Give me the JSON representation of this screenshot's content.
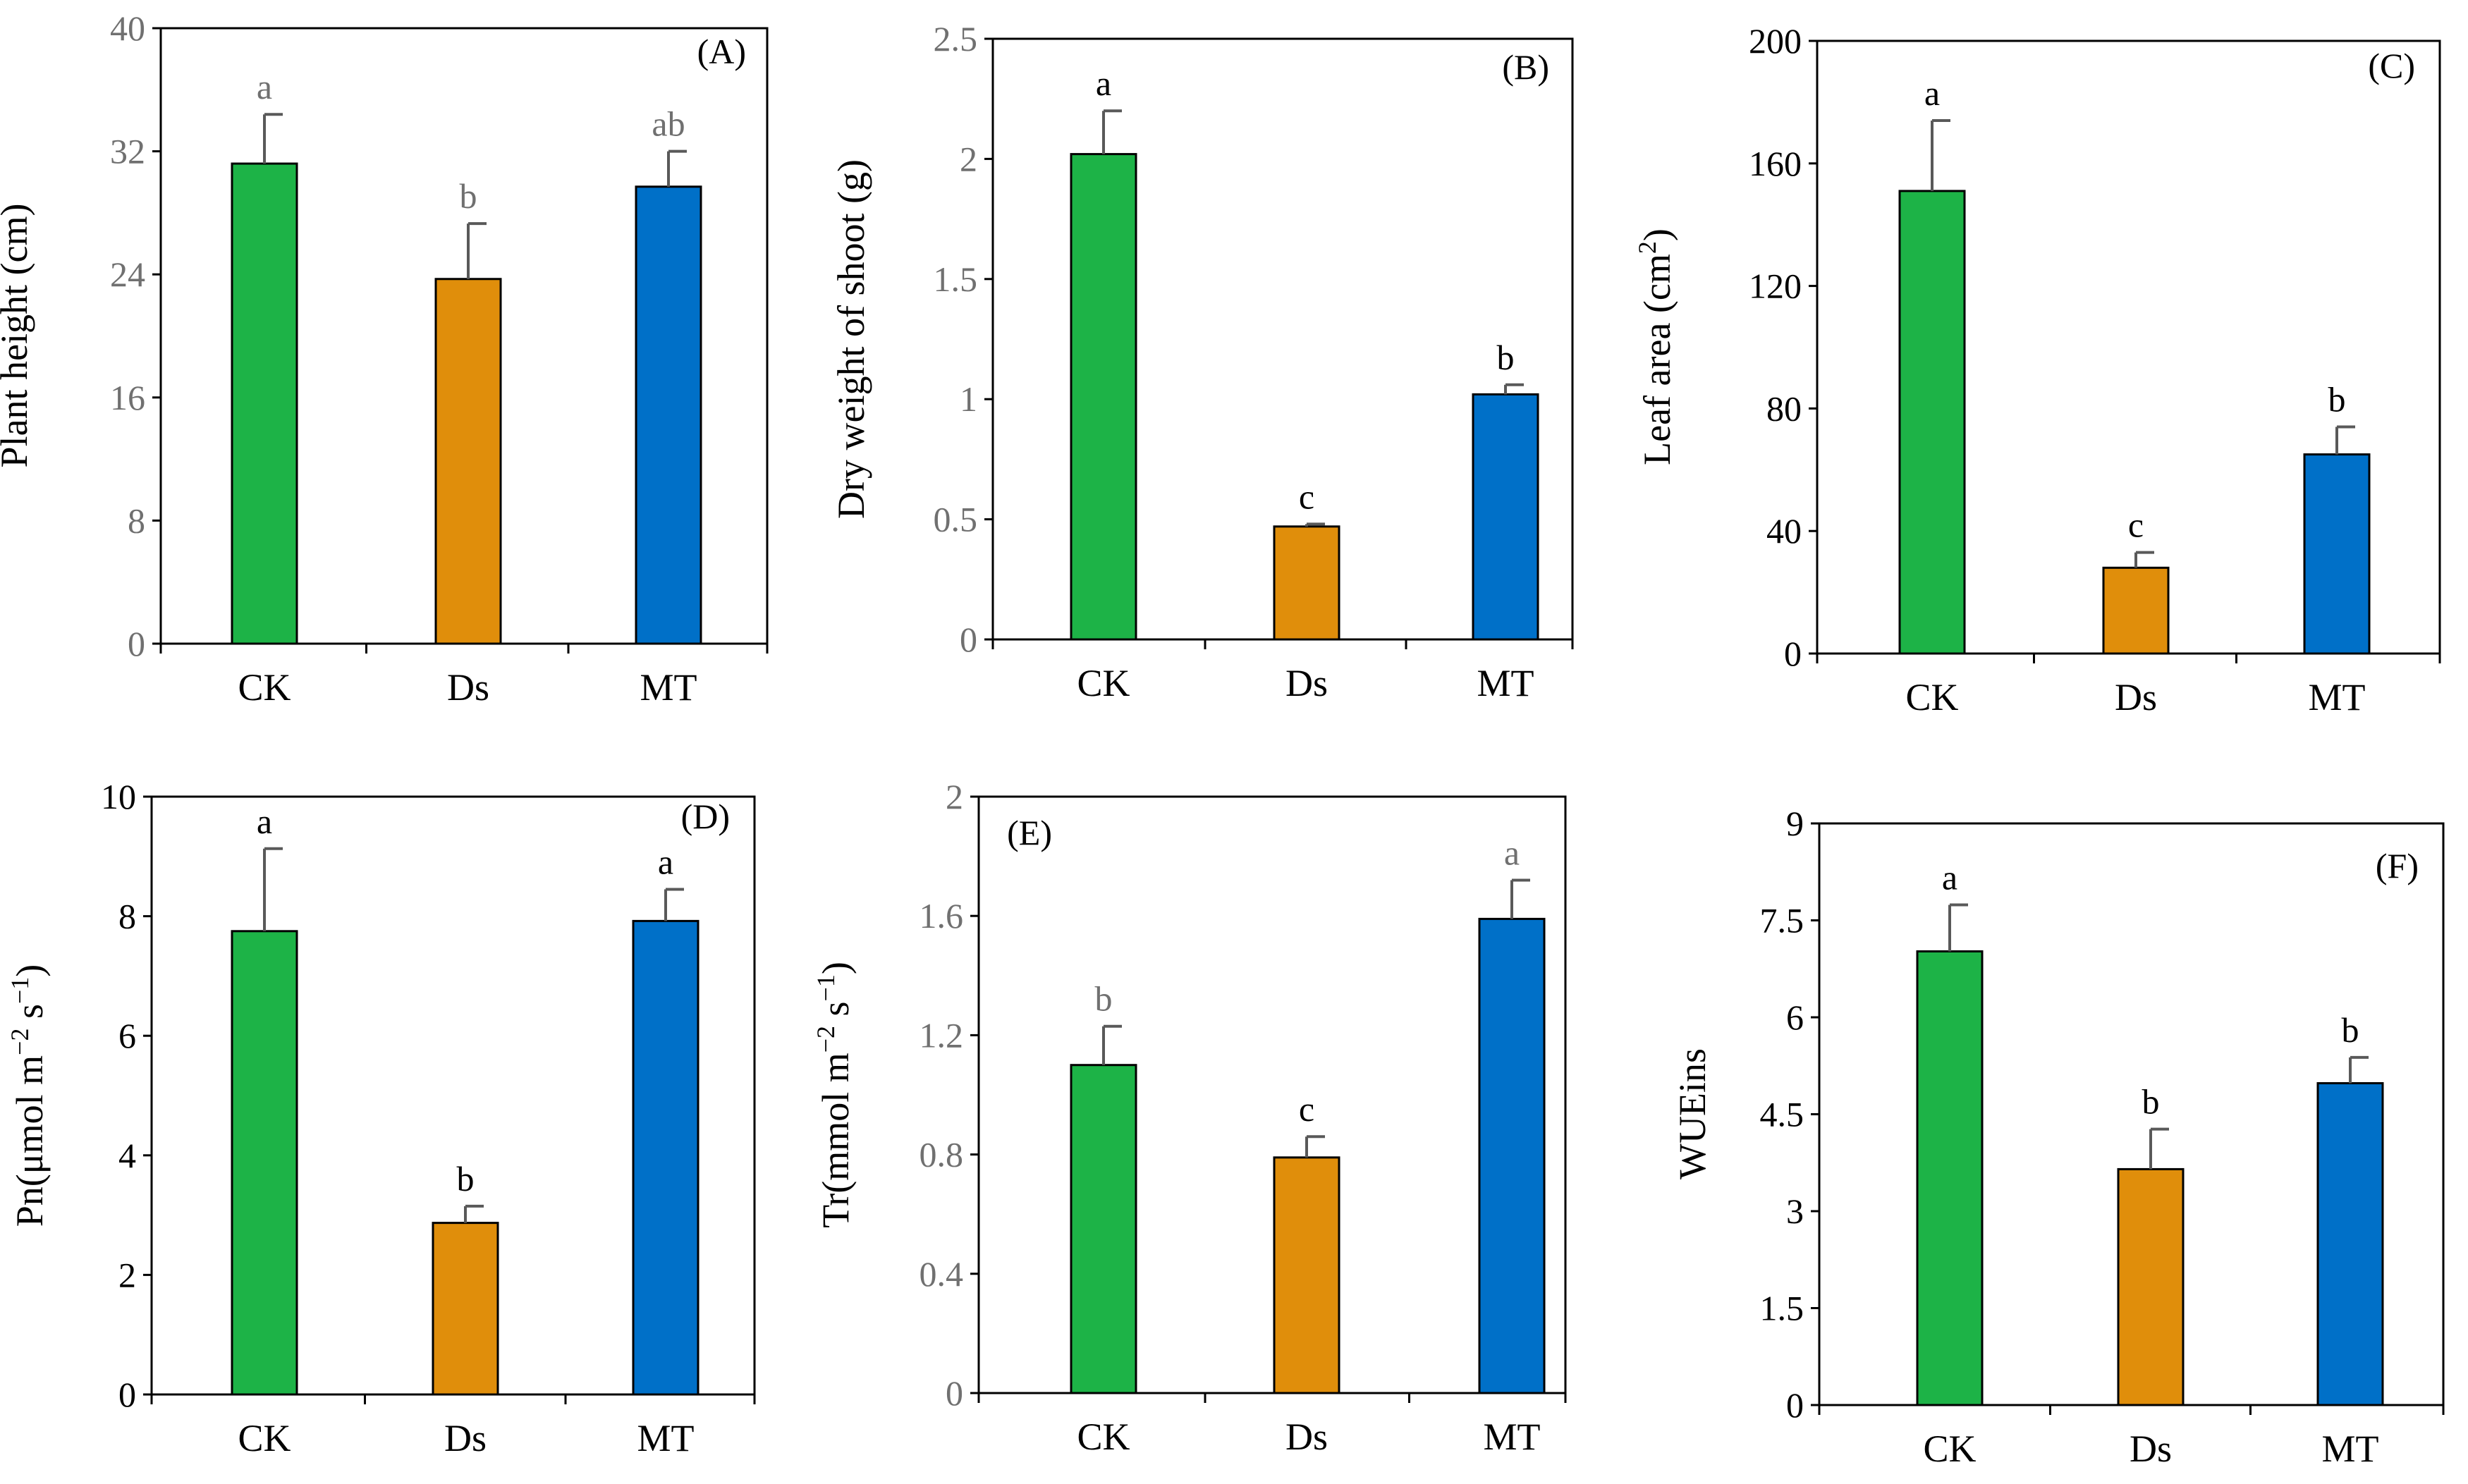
{
  "figure": {
    "bar_colors": {
      "CK": "#1db347",
      "Ds": "#e08e0b",
      "MT": "#0070c8"
    },
    "gray_text_color": "#707070"
  },
  "chart_data": [
    {
      "type": "bar",
      "panel": "(A)",
      "ylabel": "Plant height (cm)",
      "categories": [
        "CK",
        "Ds",
        "MT"
      ],
      "values": [
        31.2,
        23.7,
        29.7
      ],
      "errors": [
        3.2,
        3.6,
        2.3
      ],
      "letters": [
        "a",
        "b",
        "ab"
      ],
      "ylim": [
        0,
        40
      ],
      "yticks": [
        0,
        8,
        16,
        24,
        32,
        40
      ],
      "ytick_labels": [
        "0",
        "8",
        "16",
        "24",
        "32",
        "40"
      ]
    },
    {
      "type": "bar",
      "panel": "(B)",
      "ylabel": "Dry weight of shoot (g)",
      "categories": [
        "CK",
        "Ds",
        "MT"
      ],
      "values": [
        2.02,
        0.47,
        1.02
      ],
      "errors": [
        0.18,
        0.01,
        0.04
      ],
      "letters": [
        "a",
        "c",
        "b"
      ],
      "ylim": [
        0,
        2.5
      ],
      "yticks": [
        0,
        0.5,
        1,
        1.5,
        2,
        2.5
      ],
      "ytick_labels": [
        "0",
        "0.5",
        "1",
        "1.5",
        "2",
        "2.5"
      ]
    },
    {
      "type": "bar",
      "panel": "(C)",
      "ylabel": "Leaf area (cm",
      "ylabel_sup": "2",
      "ylabel_end": ")",
      "categories": [
        "CK",
        "Ds",
        "MT"
      ],
      "values": [
        151,
        28,
        65
      ],
      "errors": [
        23,
        5,
        9
      ],
      "letters": [
        "a",
        "c",
        "b"
      ],
      "ylim": [
        0,
        200
      ],
      "yticks": [
        0,
        40,
        80,
        120,
        160,
        200
      ],
      "ytick_labels": [
        "0",
        "40",
        "80",
        "120",
        "160",
        "200"
      ]
    },
    {
      "type": "bar",
      "panel": "(D)",
      "ylabel": "Pn(μmol m",
      "ylabel_sup": "−2",
      "ylabel_mid": " s",
      "ylabel_sup2": "−1",
      "ylabel_end": ")",
      "categories": [
        "CK",
        "Ds",
        "MT"
      ],
      "values": [
        7.75,
        2.87,
        7.92
      ],
      "errors": [
        1.38,
        0.28,
        0.53
      ],
      "letters": [
        "a",
        "b",
        "a"
      ],
      "ylim": [
        0,
        10
      ],
      "yticks": [
        0,
        2,
        4,
        6,
        8,
        10
      ],
      "ytick_labels": [
        "0",
        "2",
        "4",
        "6",
        "8",
        "10"
      ]
    },
    {
      "type": "bar",
      "panel": "(E)",
      "ylabel": "Tr(mmol m",
      "ylabel_sup": "−2",
      "ylabel_mid": " s",
      "ylabel_sup2": "−1",
      "ylabel_end": ")",
      "categories": [
        "CK",
        "Ds",
        "MT"
      ],
      "values": [
        1.1,
        0.79,
        1.59
      ],
      "errors": [
        0.13,
        0.07,
        0.13
      ],
      "letters": [
        "b",
        "c",
        "a"
      ],
      "ylim": [
        0,
        2
      ],
      "yticks": [
        0,
        0.4,
        0.8,
        1.2,
        1.6,
        2
      ],
      "ytick_labels": [
        "0",
        "0.4",
        "0.8",
        "1.2",
        "1.6",
        "2"
      ]
    },
    {
      "type": "bar",
      "panel": "(F)",
      "ylabel": "WUEins",
      "categories": [
        "CK",
        "Ds",
        "MT"
      ],
      "values": [
        7.02,
        3.65,
        4.98
      ],
      "errors": [
        0.72,
        0.62,
        0.4
      ],
      "letters": [
        "a",
        "b",
        "b"
      ],
      "ylim": [
        0,
        9
      ],
      "yticks": [
        0,
        1.5,
        3,
        4.5,
        6,
        7.5,
        9
      ],
      "ytick_labels": [
        "0",
        "1.5",
        "3",
        "4.5",
        "6",
        "7.5",
        "9"
      ]
    }
  ]
}
